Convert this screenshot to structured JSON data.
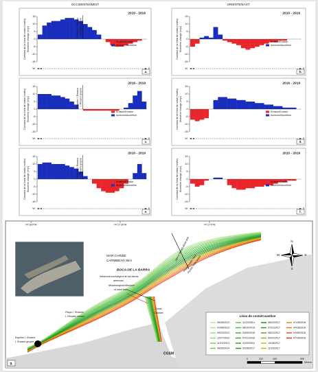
{
  "headers": {
    "west": "OCCIDENTE/WEST",
    "east": "ORIENTE/EAST"
  },
  "chart_data": [
    {
      "type": "bar",
      "panel": "a.",
      "title": "2010 - 2016",
      "y_label": [
        "Cambios de la línea de costa (m/año)",
        "Shoreline change (m/yr)"
      ],
      "annotation": [
        "Espolón I. Rosario",
        "I. Rosario groyne"
      ],
      "x_start": "W",
      "x_end": "E",
      "values": [
        3,
        9,
        11,
        12,
        12,
        13,
        14,
        14,
        13,
        12,
        10,
        8,
        6,
        3,
        0,
        -2,
        -4,
        -5,
        -5,
        -4,
        -3,
        -2,
        -1,
        0
      ],
      "legend": [
        {
          "name": "Erosión/Erosion",
          "color": "#e8262b"
        },
        {
          "name": "Acreción/Accretion",
          "color": "#1a2ebd"
        }
      ],
      "ylim": [
        -15,
        15
      ],
      "yticks": [
        -15,
        -10,
        -5,
        0,
        5,
        10,
        15
      ]
    },
    {
      "type": "bar",
      "panel": "b.",
      "title": "2010 - 2016",
      "y_label": [
        "Cambios de la línea de costa (m/año)",
        "Shoreline change (m/yr)"
      ],
      "x_start": "W",
      "x_end": "E",
      "values": [
        -5,
        -3,
        1,
        2,
        1,
        8,
        3,
        -1,
        -2,
        -3,
        -4,
        -6,
        -7,
        -6,
        -5,
        -4,
        -3,
        -2,
        -2,
        -1,
        -1,
        0,
        0,
        0
      ],
      "legend": [
        {
          "name": "Erosión/Erosion",
          "color": "#e8262b"
        },
        {
          "name": "Acreción/Accretion",
          "color": "#1a2ebd"
        }
      ],
      "ylim": [
        -15,
        15
      ],
      "yticks": [
        -15,
        -10,
        -5,
        0,
        5,
        10,
        15
      ]
    },
    {
      "type": "bar",
      "panel": "c.",
      "title": "2016 - 2019",
      "y_label": [
        "Cambios de la línea de costa (m/año)",
        "Shoreline change (m/yr)"
      ],
      "annotation": [
        "Espolón I. Rosario",
        "I. Rosario groyne"
      ],
      "x_start": "W",
      "x_end": "E",
      "values": [
        10,
        10,
        10,
        9,
        9,
        8,
        7,
        5,
        3,
        0,
        -1,
        -1,
        -1,
        -1,
        -1,
        -1,
        -1,
        -1,
        0,
        1,
        4,
        9,
        12,
        5
      ],
      "legend": [
        {
          "name": "Erosión/Erosion",
          "color": "#e8262b"
        },
        {
          "name": "Acreción/Accretion",
          "color": "#1a2ebd"
        }
      ],
      "ylim": [
        -15,
        15
      ],
      "yticks": [
        -15,
        -10,
        -5,
        0,
        5,
        10,
        15
      ]
    },
    {
      "type": "bar",
      "panel": "d.",
      "title": "2016 - 2019",
      "y_label": [
        "Cambios de la línea de costa (m/año)",
        "Shoreline change (m/yr)"
      ],
      "x_start": "W",
      "x_end": "E",
      "values": [
        -7,
        -8,
        -7,
        -6,
        0,
        6,
        8,
        8,
        7,
        7,
        6,
        6,
        5,
        5,
        4,
        4,
        3,
        3,
        2,
        2,
        1,
        1,
        1,
        0
      ],
      "legend": [
        {
          "name": "Erosión/Erosion",
          "color": "#e8262b"
        },
        {
          "name": "Acreción/Accretion",
          "color": "#1a2ebd"
        }
      ],
      "ylim": [
        -15,
        15
      ],
      "yticks": [
        -15,
        -10,
        -5,
        0,
        5,
        10,
        15
      ]
    },
    {
      "type": "bar",
      "panel": "e.",
      "title": "2010 - 2019",
      "y_label": [
        "Cambios de la línea de costa (m/año)",
        "Shoreline change (m/yr)"
      ],
      "annotation": [
        "Espolón I. Rosario",
        "I. Rosario groyne"
      ],
      "x_start": "W",
      "x_end": "E",
      "values": [
        10,
        11,
        11,
        10,
        10,
        10,
        9,
        8,
        7,
        5,
        2,
        0,
        -3,
        -6,
        -8,
        -9,
        -9,
        -8,
        -6,
        -3,
        0,
        4,
        10,
        4
      ],
      "legend": [
        {
          "name": "Erosión/Erosion",
          "color": "#e8262b"
        },
        {
          "name": "Acreción/Accretion",
          "color": "#1a2ebd"
        }
      ],
      "ylim": [
        -15,
        15
      ],
      "yticks": [
        -15,
        -10,
        -5,
        0,
        5,
        10,
        15
      ]
    },
    {
      "type": "bar",
      "panel": "f.",
      "title": "2010 - 2019",
      "y_label": [
        "Cambios de la línea de costa (m/año)",
        "Shoreline change (m/yr)"
      ],
      "x_start": "W",
      "x_end": "E",
      "values": [
        -3,
        -5,
        -4,
        -1,
        0,
        1,
        1,
        0,
        -4,
        -6,
        -7,
        -7,
        -6,
        -6,
        -5,
        -5,
        -4,
        -4,
        -3,
        -2,
        -2,
        -1,
        -1,
        0
      ],
      "legend": [
        {
          "name": "Erosión/Erosion",
          "color": "#e8262b"
        },
        {
          "name": "Acreción/Accretion",
          "color": "#1a2ebd"
        }
      ],
      "ylim": [
        -15,
        15
      ],
      "yticks": [
        -15,
        -10,
        -5,
        0,
        5,
        10,
        15
      ]
    }
  ],
  "map": {
    "panel": "g.",
    "sea": [
      "MAR CARIBE",
      "CARIBBEAN SEA"
    ],
    "mouth": "BOCA DE LA BARRA",
    "sand_bars": [
      "Influencia morfológica de las barras",
      "arenosas",
      "Morphological influence",
      "of sand bars"
    ],
    "beach_west": [
      "Playa I. Rosario",
      "I. Rosario beach"
    ],
    "groyne": [
      "Espolón I. Rosario",
      "I. Rosario groyne"
    ],
    "channel": [
      "Canal",
      "Channel"
    ],
    "lagoon": "CGSM",
    "beach_east": [
      "Playa Pueblo Viejo",
      "Pueblo Viejo beach"
    ],
    "drift": "Deriva litoral/Littoral drift",
    "coords": [
      "74°18'0\"W",
      "74°17'30\"W",
      "74°17'0\"W"
    ],
    "compass": [
      "N",
      "E",
      "S",
      "W"
    ],
    "legend_title": "Línea de costa/Coastline",
    "dates": [
      {
        "date": "08/08/2012",
        "color": "#b8e6a0"
      },
      {
        "date": "01/08/2012",
        "color": "#a8e090"
      },
      {
        "date": "05/23/2012",
        "color": "#98da80"
      },
      {
        "date": "12/27/2012",
        "color": "#88d470"
      },
      {
        "date": "11/10/2013",
        "color": "#78ce60"
      },
      {
        "date": "08/30/2014",
        "color": "#68c850"
      },
      {
        "date": "11/23/2014",
        "color": "#58c248"
      },
      {
        "date": "08/10/2015",
        "color": "#48bc40"
      },
      {
        "date": "03/09/2016",
        "color": "#38b638"
      },
      {
        "date": "07/21/2016",
        "color": "#2eaa30"
      },
      {
        "date": "11/02/2016",
        "color": "#28a028"
      },
      {
        "date": "02/28/2017",
        "color": "#229620"
      },
      {
        "date": "06/22/2017",
        "color": "#1c8c2c"
      },
      {
        "date": "07/21/2017",
        "color": "#3a8a28"
      },
      {
        "date": "08/22/2017",
        "color": "#6a9a20"
      },
      {
        "date": "09/22/2017",
        "color": "#9aa818"
      },
      {
        "date": "10/18/2017",
        "color": "#c8b010"
      },
      {
        "date": "11/23/2017",
        "color": "#e8a010"
      },
      {
        "date": "01/18/2018",
        "color": "#f08a10"
      },
      {
        "date": "04/18/2018",
        "color": "#f07010"
      },
      {
        "date": "04/08/2018",
        "color": "#e85010"
      },
      {
        "date": "07/18/2018",
        "color": "#d83010"
      }
    ],
    "scale": [
      0,
      200,
      400,
      800,
      "Metros"
    ]
  }
}
